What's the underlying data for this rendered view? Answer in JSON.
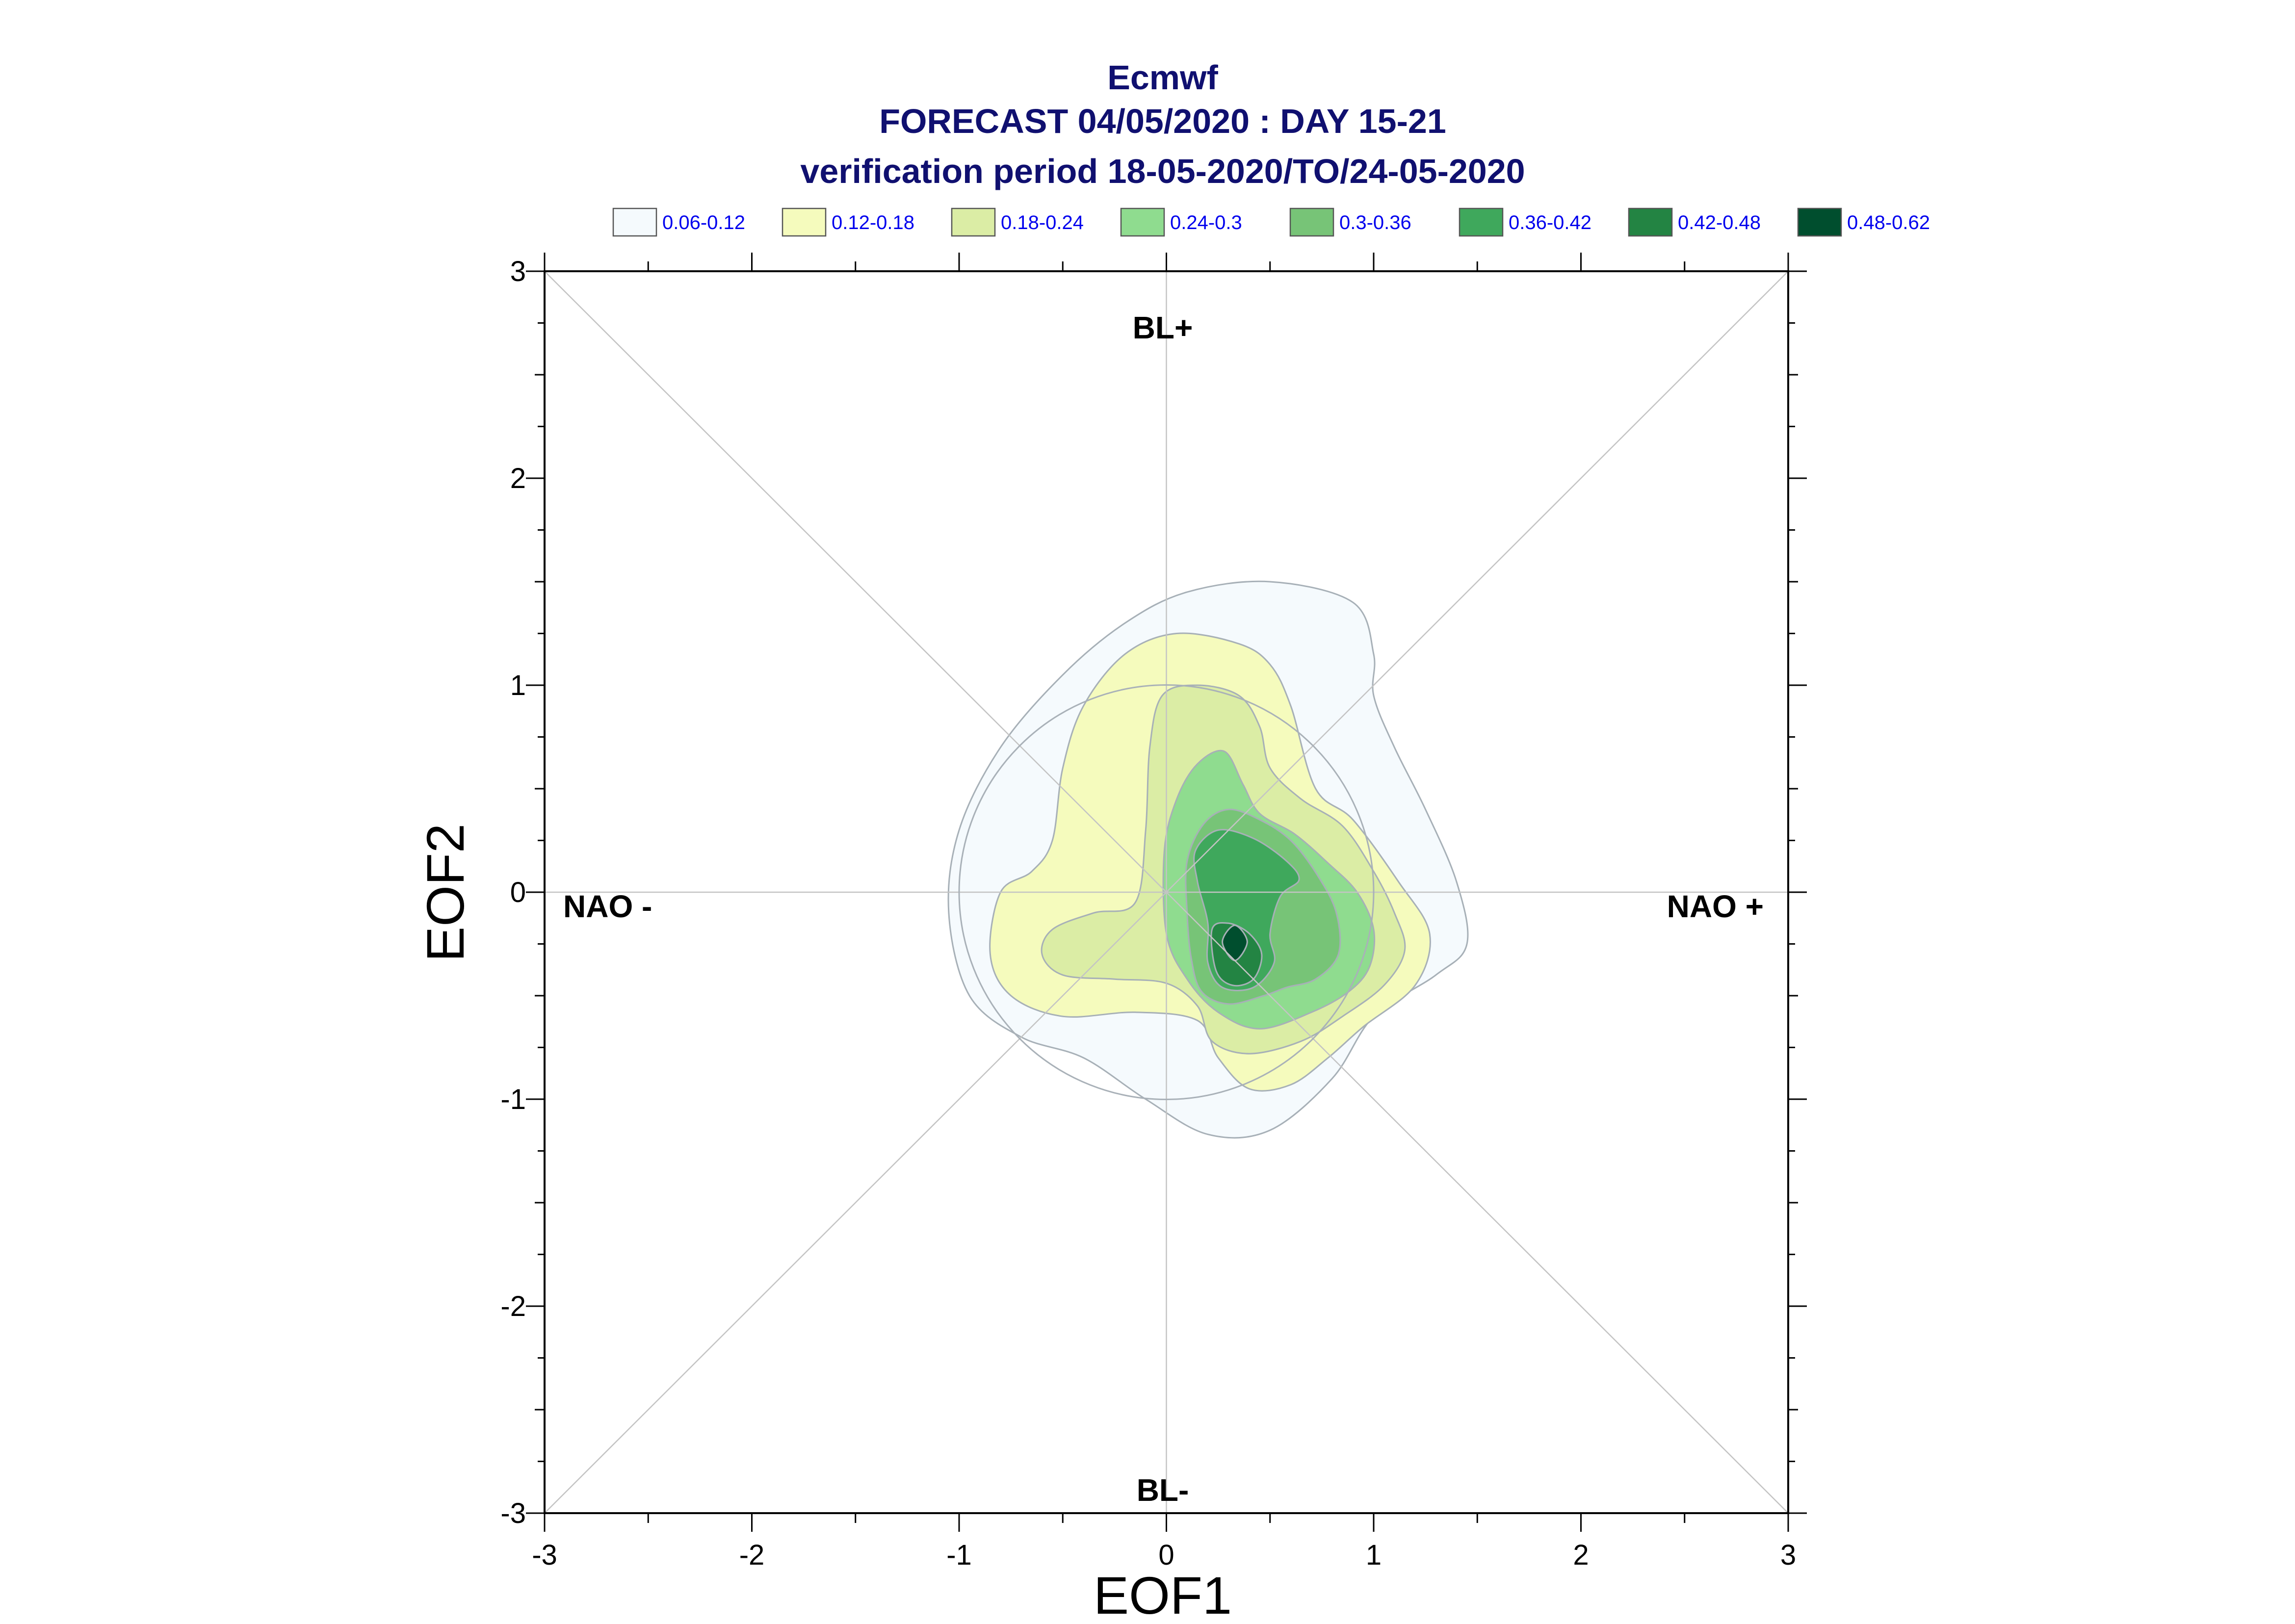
{
  "chart_data": {
    "type": "contour",
    "title_lines": [
      "Ecmwf",
      "FORECAST 04/05/2020 : DAY 15-21",
      "verification period 18-05-2020/TO/24-05-2020"
    ],
    "xlabel": "EOF1",
    "ylabel": "EOF2",
    "xlim": [
      -3,
      3
    ],
    "ylim": [
      -3,
      3
    ],
    "x_ticks": [
      "-3",
      "-2",
      "-1",
      "0",
      "1",
      "2",
      "3"
    ],
    "y_ticks": [
      "-3",
      "-2",
      "-1",
      "0",
      "1",
      "2",
      "3"
    ],
    "grid": false,
    "region_labels": {
      "top": "BL+",
      "bottom": "BL-",
      "left": "NAO -",
      "right": "NAO +"
    },
    "legend": [
      {
        "label": "0.06-0.12",
        "color": "#f5fafd"
      },
      {
        "label": "0.12-0.18",
        "color": "#f5fbbd"
      },
      {
        "label": "0.18-0.24",
        "color": "#dbeda5"
      },
      {
        "label": "0.24-0.3",
        "color": "#8fdc8f"
      },
      {
        "label": "0.3-0.36",
        "color": "#77c477"
      },
      {
        "label": "0.36-0.42",
        "color": "#3fa85c"
      },
      {
        "label": "0.42-0.48",
        "color": "#238443"
      },
      {
        "label": "0.48-0.62",
        "color": "#004e2e"
      }
    ],
    "contours": [
      {
        "level": "0.06-0.12",
        "points": [
          [
            -1.05,
            -0.1
          ],
          [
            -1.0,
            0.3
          ],
          [
            -0.8,
            0.7
          ],
          [
            -0.5,
            1.05
          ],
          [
            -0.2,
            1.3
          ],
          [
            0.1,
            1.45
          ],
          [
            0.5,
            1.5
          ],
          [
            0.9,
            1.4
          ],
          [
            1.0,
            1.15
          ],
          [
            1.0,
            0.95
          ],
          [
            1.1,
            0.7
          ],
          [
            1.25,
            0.4
          ],
          [
            1.4,
            0.05
          ],
          [
            1.45,
            -0.25
          ],
          [
            1.3,
            -0.4
          ],
          [
            1.0,
            -0.6
          ],
          [
            0.8,
            -0.9
          ],
          [
            0.5,
            -1.15
          ],
          [
            0.2,
            -1.17
          ],
          [
            -0.1,
            -1.0
          ],
          [
            -0.4,
            -0.8
          ],
          [
            -0.7,
            -0.7
          ],
          [
            -0.95,
            -0.5
          ]
        ]
      },
      {
        "level": "0.12-0.18",
        "points": [
          [
            -0.85,
            -0.3
          ],
          [
            -0.8,
            0.0
          ],
          [
            -0.65,
            0.1
          ],
          [
            -0.55,
            0.25
          ],
          [
            -0.5,
            0.6
          ],
          [
            -0.4,
            0.9
          ],
          [
            -0.2,
            1.15
          ],
          [
            0.05,
            1.25
          ],
          [
            0.35,
            1.2
          ],
          [
            0.5,
            1.1
          ],
          [
            0.6,
            0.9
          ],
          [
            0.72,
            0.5
          ],
          [
            0.9,
            0.35
          ],
          [
            1.12,
            0.05
          ],
          [
            1.27,
            -0.2
          ],
          [
            1.2,
            -0.45
          ],
          [
            0.95,
            -0.65
          ],
          [
            0.78,
            -0.8
          ],
          [
            0.6,
            -0.93
          ],
          [
            0.4,
            -0.95
          ],
          [
            0.25,
            -0.8
          ],
          [
            0.15,
            -0.62
          ],
          [
            -0.15,
            -0.58
          ],
          [
            -0.5,
            -0.6
          ],
          [
            -0.75,
            -0.5
          ]
        ]
      },
      {
        "level": "0.18-0.24",
        "points": [
          [
            -0.6,
            -0.3
          ],
          [
            -0.55,
            -0.18
          ],
          [
            -0.35,
            -0.1
          ],
          [
            -0.15,
            -0.05
          ],
          [
            -0.1,
            0.3
          ],
          [
            -0.08,
            0.7
          ],
          [
            -0.02,
            0.95
          ],
          [
            0.15,
            1.0
          ],
          [
            0.35,
            0.95
          ],
          [
            0.45,
            0.8
          ],
          [
            0.5,
            0.6
          ],
          [
            0.65,
            0.45
          ],
          [
            0.85,
            0.32
          ],
          [
            1.0,
            0.1
          ],
          [
            1.1,
            -0.1
          ],
          [
            1.15,
            -0.28
          ],
          [
            1.05,
            -0.45
          ],
          [
            0.85,
            -0.6
          ],
          [
            0.65,
            -0.72
          ],
          [
            0.4,
            -0.78
          ],
          [
            0.22,
            -0.72
          ],
          [
            0.15,
            -0.55
          ],
          [
            0.0,
            -0.44
          ],
          [
            -0.25,
            -0.42
          ],
          [
            -0.5,
            -0.4
          ]
        ]
      },
      {
        "level": "0.24-0.3",
        "points": [
          [
            -0.01,
            0.2
          ],
          [
            0.05,
            0.45
          ],
          [
            0.15,
            0.62
          ],
          [
            0.28,
            0.68
          ],
          [
            0.37,
            0.52
          ],
          [
            0.45,
            0.38
          ],
          [
            0.62,
            0.28
          ],
          [
            0.78,
            0.14
          ],
          [
            0.92,
            0.0
          ],
          [
            1.0,
            -0.18
          ],
          [
            0.98,
            -0.36
          ],
          [
            0.88,
            -0.48
          ],
          [
            0.7,
            -0.58
          ],
          [
            0.45,
            -0.66
          ],
          [
            0.25,
            -0.58
          ],
          [
            0.1,
            -0.42
          ],
          [
            0.0,
            -0.2
          ]
        ]
      },
      {
        "level": "0.3-0.36",
        "points": [
          [
            0.1,
            0.15
          ],
          [
            0.18,
            0.33
          ],
          [
            0.3,
            0.4
          ],
          [
            0.45,
            0.35
          ],
          [
            0.6,
            0.25
          ],
          [
            0.73,
            0.08
          ],
          [
            0.82,
            -0.1
          ],
          [
            0.83,
            -0.3
          ],
          [
            0.72,
            -0.42
          ],
          [
            0.58,
            -0.46
          ],
          [
            0.47,
            -0.5
          ],
          [
            0.3,
            -0.54
          ],
          [
            0.17,
            -0.48
          ],
          [
            0.12,
            -0.32
          ],
          [
            0.1,
            -0.1
          ]
        ]
      },
      {
        "level": "0.36-0.42",
        "points": [
          [
            0.14,
            0.2
          ],
          [
            0.25,
            0.3
          ],
          [
            0.42,
            0.26
          ],
          [
            0.58,
            0.15
          ],
          [
            0.64,
            0.06
          ],
          [
            0.55,
            -0.02
          ],
          [
            0.5,
            -0.2
          ],
          [
            0.52,
            -0.34
          ],
          [
            0.42,
            -0.46
          ],
          [
            0.27,
            -0.46
          ],
          [
            0.2,
            -0.34
          ],
          [
            0.2,
            -0.15
          ],
          [
            0.15,
            0.05
          ]
        ]
      },
      {
        "level": "0.42-0.48",
        "points": [
          [
            0.22,
            -0.18
          ],
          [
            0.3,
            -0.15
          ],
          [
            0.4,
            -0.2
          ],
          [
            0.46,
            -0.3
          ],
          [
            0.42,
            -0.42
          ],
          [
            0.32,
            -0.45
          ],
          [
            0.24,
            -0.38
          ]
        ]
      },
      {
        "level": "0.48-0.62",
        "points": [
          [
            0.27,
            -0.24
          ],
          [
            0.33,
            -0.16
          ],
          [
            0.39,
            -0.24
          ],
          [
            0.33,
            -0.33
          ]
        ]
      }
    ]
  }
}
